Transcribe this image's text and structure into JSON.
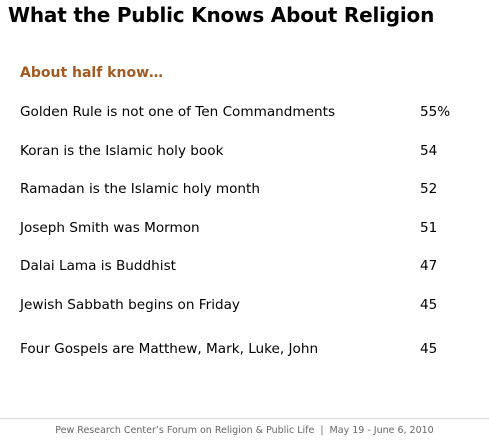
{
  "header": {
    "title": "What the Public Knows About Religion",
    "subtitle": "About half know…"
  },
  "table": {
    "rows": [
      [
        "Golden Rule is not one of Ten Commandments",
        "55%"
      ],
      [
        "Koran is the Islamic holy book",
        "54"
      ],
      [
        "Ramadan is the Islamic holy month",
        "52"
      ],
      [
        "Joseph Smith was Mormon",
        "51"
      ],
      [
        "Dalai Lama is Buddhist",
        "47"
      ],
      [
        "Jewish Sabbath begins on Friday",
        "45"
      ],
      [
        "Four Gospels are Matthew, Mark, Luke, John",
        "45"
      ]
    ]
  },
  "footer": {
    "source": "Pew Research Center’s Forum on Religion & Public Life",
    "date": "May 19 - June 6, 2010"
  }
}
